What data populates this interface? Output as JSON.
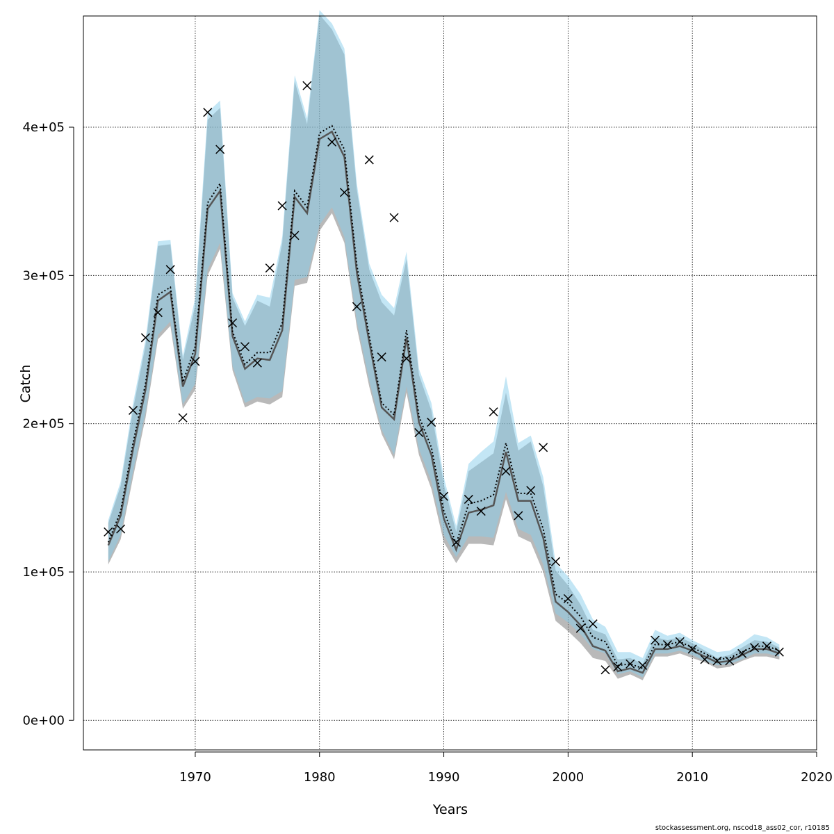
{
  "chart_data": {
    "type": "line",
    "xlabel": "Years",
    "ylabel": "Catch",
    "xlim": [
      1961,
      2020
    ],
    "ylim": [
      -20000,
      475000
    ],
    "x_ticks": [
      1970,
      1980,
      1990,
      2000,
      2010,
      2020
    ],
    "x_tick_labels": [
      "1970",
      "1980",
      "1990",
      "2000",
      "2010",
      "2020"
    ],
    "y_ticks": [
      0,
      100000,
      200000,
      300000,
      400000
    ],
    "y_tick_labels": [
      "0e+00",
      "1e+05",
      "2e+05",
      "3e+05",
      "4e+05"
    ],
    "grid": true,
    "colors": {
      "band_gray": "#808080",
      "band_blue": "#87ceeb",
      "line_gray": "#555555",
      "line_dotted": "#000000",
      "marker": "#000000"
    },
    "years": [
      1963,
      1964,
      1965,
      1966,
      1967,
      1968,
      1969,
      1970,
      1971,
      1972,
      1973,
      1974,
      1975,
      1976,
      1977,
      1978,
      1979,
      1980,
      1981,
      1982,
      1983,
      1984,
      1985,
      1986,
      1987,
      1988,
      1989,
      1990,
      1991,
      1992,
      1993,
      1994,
      1995,
      1996,
      1997,
      1998,
      1999,
      2000,
      2001,
      2002,
      2003,
      2004,
      2005,
      2006,
      2007,
      2008,
      2009,
      2010,
      2011,
      2012,
      2013,
      2014,
      2015,
      2016,
      2017
    ],
    "series": [
      {
        "role": "fit_reference",
        "estimate": [
          118000,
          138000,
          183000,
          223000,
          283000,
          289000,
          225000,
          247000,
          345000,
          357000,
          259000,
          237000,
          244000,
          243000,
          263000,
          353000,
          342000,
          392000,
          397000,
          380000,
          302000,
          255000,
          211000,
          203000,
          258000,
          201000,
          179000,
          136000,
          115000,
          140000,
          142000,
          145000,
          181000,
          148000,
          148000,
          123000,
          80000,
          73000,
          64000,
          50000,
          47000,
          33000,
          35000,
          32000,
          48000,
          48000,
          50000,
          47000,
          43000,
          39000,
          40000,
          44000,
          48000,
          48000,
          45000
        ],
        "lower": [
          105000,
          122000,
          164000,
          204000,
          257000,
          266000,
          210000,
          223000,
          300000,
          318000,
          236000,
          211000,
          215000,
          213000,
          218000,
          293000,
          295000,
          330000,
          342000,
          322000,
          265000,
          225000,
          193000,
          176000,
          221000,
          179000,
          156000,
          120000,
          106000,
          119000,
          119000,
          118000,
          149000,
          124000,
          120000,
          100000,
          67000,
          60000,
          52000,
          42000,
          40000,
          28000,
          31000,
          27000,
          43000,
          43000,
          45000,
          42000,
          39000,
          35000,
          36000,
          40000,
          43000,
          43000,
          41000
        ],
        "upper": [
          133000,
          158000,
          210000,
          253000,
          320000,
          321000,
          243000,
          280000,
          405000,
          413000,
          285000,
          266000,
          283000,
          279000,
          322000,
          431000,
          402000,
          476000,
          466000,
          449000,
          358000,
          304000,
          282000,
          273000,
          311000,
          233000,
          209000,
          159000,
          127000,
          168000,
          174000,
          180000,
          221000,
          182000,
          188000,
          158000,
          101000,
          91000,
          78000,
          61000,
          58000,
          41000,
          42000,
          38000,
          56000,
          54000,
          56000,
          52000,
          47000,
          42000,
          44000,
          49000,
          54000,
          53000,
          49000
        ]
      },
      {
        "role": "fit_current",
        "estimate": [
          120000,
          141000,
          187000,
          227000,
          287000,
          292000,
          228000,
          252000,
          349000,
          362000,
          262000,
          240000,
          248000,
          248000,
          268000,
          357000,
          346000,
          396000,
          401000,
          385000,
          307000,
          259000,
          214000,
          206000,
          263000,
          205000,
          184000,
          141000,
          119000,
          146000,
          148000,
          152000,
          187000,
          153000,
          153000,
          129000,
          85000,
          79000,
          70000,
          56000,
          53000,
          37000,
          38000,
          35000,
          51000,
          51000,
          53000,
          49000,
          45000,
          41000,
          42000,
          46000,
          50000,
          50000,
          47000
        ],
        "lower": [
          107000,
          125000,
          168000,
          208000,
          260000,
          269000,
          213000,
          227000,
          304000,
          322000,
          239000,
          214000,
          218000,
          217000,
          222000,
          297000,
          299000,
          334000,
          346000,
          326000,
          269000,
          229000,
          196000,
          179000,
          225000,
          183000,
          161000,
          125000,
          110000,
          124000,
          124000,
          123000,
          154000,
          129000,
          125000,
          105000,
          72000,
          66000,
          58000,
          48000,
          45000,
          31000,
          33000,
          29000,
          45000,
          45000,
          47000,
          44000,
          40000,
          37000,
          38000,
          41000,
          45000,
          45000,
          43000
        ],
        "upper": [
          135000,
          161000,
          214000,
          257000,
          323000,
          324000,
          246000,
          285000,
          410000,
          418000,
          288000,
          269000,
          287000,
          285000,
          326000,
          435000,
          406000,
          479000,
          470000,
          453000,
          362000,
          308000,
          287000,
          278000,
          316000,
          237000,
          214000,
          164000,
          131000,
          173000,
          181000,
          188000,
          232000,
          187000,
          192000,
          164000,
          106000,
          97000,
          85000,
          68000,
          63000,
          46000,
          46000,
          42000,
          61000,
          57000,
          59000,
          54000,
          50000,
          46000,
          47000,
          52000,
          58000,
          56000,
          51000
        ]
      },
      {
        "role": "observed_catch",
        "marker": "x",
        "values": [
          127000,
          129000,
          209000,
          258000,
          275000,
          304000,
          204000,
          242000,
          410000,
          385000,
          268000,
          252000,
          241000,
          305000,
          347000,
          327000,
          428000,
          null,
          390000,
          356000,
          279000,
          378000,
          245000,
          339000,
          244000,
          194000,
          201000,
          151000,
          120000,
          149000,
          141000,
          208000,
          168000,
          138000,
          155000,
          184000,
          107000,
          82000,
          62000,
          65000,
          34000,
          36000,
          38000,
          37000,
          54000,
          51000,
          53000,
          48000,
          41000,
          40000,
          40000,
          45000,
          49000,
          50000,
          46000
        ]
      }
    ]
  },
  "footer": {
    "text": "stockassessment.org, nscod18_ass02_cor, r10185"
  }
}
